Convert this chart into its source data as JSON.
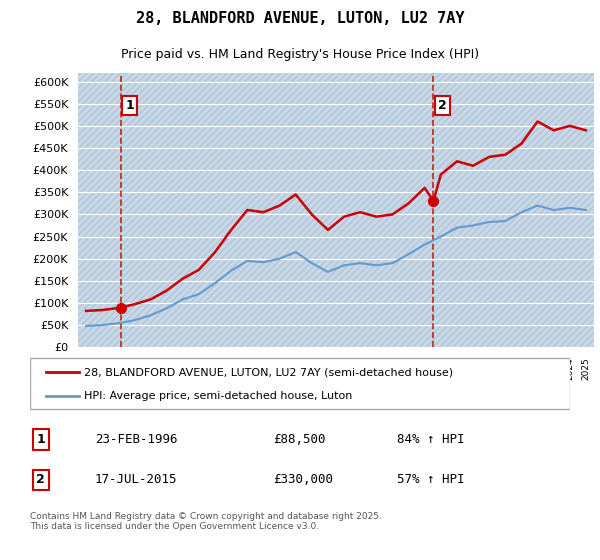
{
  "title": "28, BLANDFORD AVENUE, LUTON, LU2 7AY",
  "subtitle": "Price paid vs. HM Land Registry's House Price Index (HPI)",
  "legend_line1": "28, BLANDFORD AVENUE, LUTON, LU2 7AY (semi-detached house)",
  "legend_line2": "HPI: Average price, semi-detached house, Luton",
  "table_rows": [
    {
      "num": "1",
      "date": "23-FEB-1996",
      "price": "£88,500",
      "hpi": "84% ↑ HPI"
    },
    {
      "num": "2",
      "date": "17-JUL-2015",
      "price": "£330,000",
      "hpi": "57% ↑ HPI"
    }
  ],
  "footnote": "Contains HM Land Registry data © Crown copyright and database right 2025.\nThis data is licensed under the Open Government Licence v3.0.",
  "vline1_x": 1996.15,
  "vline2_x": 2015.54,
  "marker1_x": 1996.15,
  "marker1_y": 88500,
  "marker2_x": 2015.54,
  "marker2_y": 330000,
  "ylim": [
    0,
    620000
  ],
  "xlim_left": 1993.5,
  "xlim_right": 2025.5,
  "red_color": "#cc0000",
  "blue_color": "#6699cc",
  "bg_plot": "#dce6f0",
  "bg_hatch": "#c8d8e8",
  "grid_color": "#ffffff",
  "hpi_red_data_x": [
    1994,
    1995,
    1996,
    1997,
    1998,
    1999,
    2000,
    2001,
    2002,
    2003,
    2004,
    2005,
    2006,
    2007,
    2008,
    2009,
    2010,
    2011,
    2012,
    2013,
    2014,
    2015,
    2015.54,
    2016,
    2017,
    2018,
    2019,
    2020,
    2021,
    2022,
    2023,
    2024,
    2025
  ],
  "hpi_red_data_y": [
    82000,
    84000,
    88500,
    97000,
    108000,
    128000,
    155000,
    175000,
    215000,
    265000,
    310000,
    305000,
    320000,
    345000,
    300000,
    265000,
    295000,
    305000,
    295000,
    300000,
    325000,
    360000,
    330000,
    390000,
    420000,
    410000,
    430000,
    435000,
    460000,
    510000,
    490000,
    500000,
    490000
  ],
  "hpi_blue_data_x": [
    1994,
    1995,
    1996,
    1997,
    1998,
    1999,
    2000,
    2001,
    2002,
    2003,
    2004,
    2005,
    2006,
    2007,
    2008,
    2009,
    2010,
    2011,
    2012,
    2013,
    2014,
    2015,
    2016,
    2017,
    2018,
    2019,
    2020,
    2021,
    2022,
    2023,
    2024,
    2025
  ],
  "hpi_blue_data_y": [
    48000,
    50000,
    54000,
    61000,
    72000,
    88000,
    108000,
    120000,
    145000,
    173000,
    195000,
    192000,
    200000,
    215000,
    190000,
    170000,
    185000,
    190000,
    185000,
    190000,
    210000,
    232000,
    250000,
    270000,
    275000,
    283000,
    285000,
    305000,
    320000,
    310000,
    315000,
    310000
  ]
}
